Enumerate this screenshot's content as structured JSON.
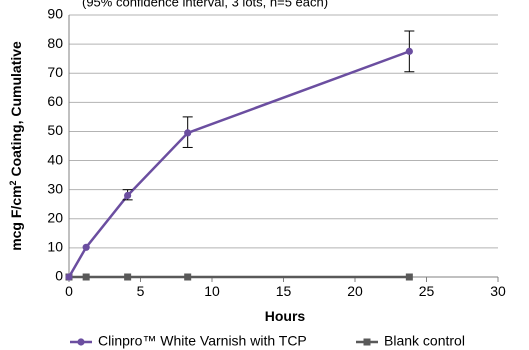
{
  "chart_data": {
    "type": "line",
    "subtitle": "(95% confidence interval, 3 lots, n=5 each)",
    "xlabel": "Hours",
    "ylabel_parts": [
      "mcg F/cm",
      "2",
      " Coating, Cumulative"
    ],
    "xlim": [
      0,
      30
    ],
    "ylim": [
      0,
      90
    ],
    "x_ticks": [
      "0",
      "5",
      "10",
      "15",
      "20",
      "25",
      "30"
    ],
    "y_ticks": [
      "0",
      "10",
      "20",
      "30",
      "40",
      "50",
      "60",
      "70",
      "80",
      "90"
    ],
    "grid": "horizontal",
    "legend_position": "bottom",
    "series": [
      {
        "name": "Clinpro™ White Varnish with TCP",
        "color": "#6b4ea0",
        "marker": "circle",
        "x": [
          0,
          1.2,
          4.1,
          8.3,
          23.8
        ],
        "y": [
          0,
          10.2,
          28.0,
          49.5,
          77.5
        ],
        "error_low": [
          null,
          null,
          26.5,
          44.5,
          70.5
        ],
        "error_high": [
          null,
          null,
          30.0,
          55.0,
          84.5
        ]
      },
      {
        "name": "Blank control",
        "color": "#595959",
        "marker": "square",
        "x": [
          0,
          1.2,
          4.1,
          8.3,
          23.8
        ],
        "y": [
          0,
          0,
          0,
          0,
          0
        ]
      }
    ]
  }
}
